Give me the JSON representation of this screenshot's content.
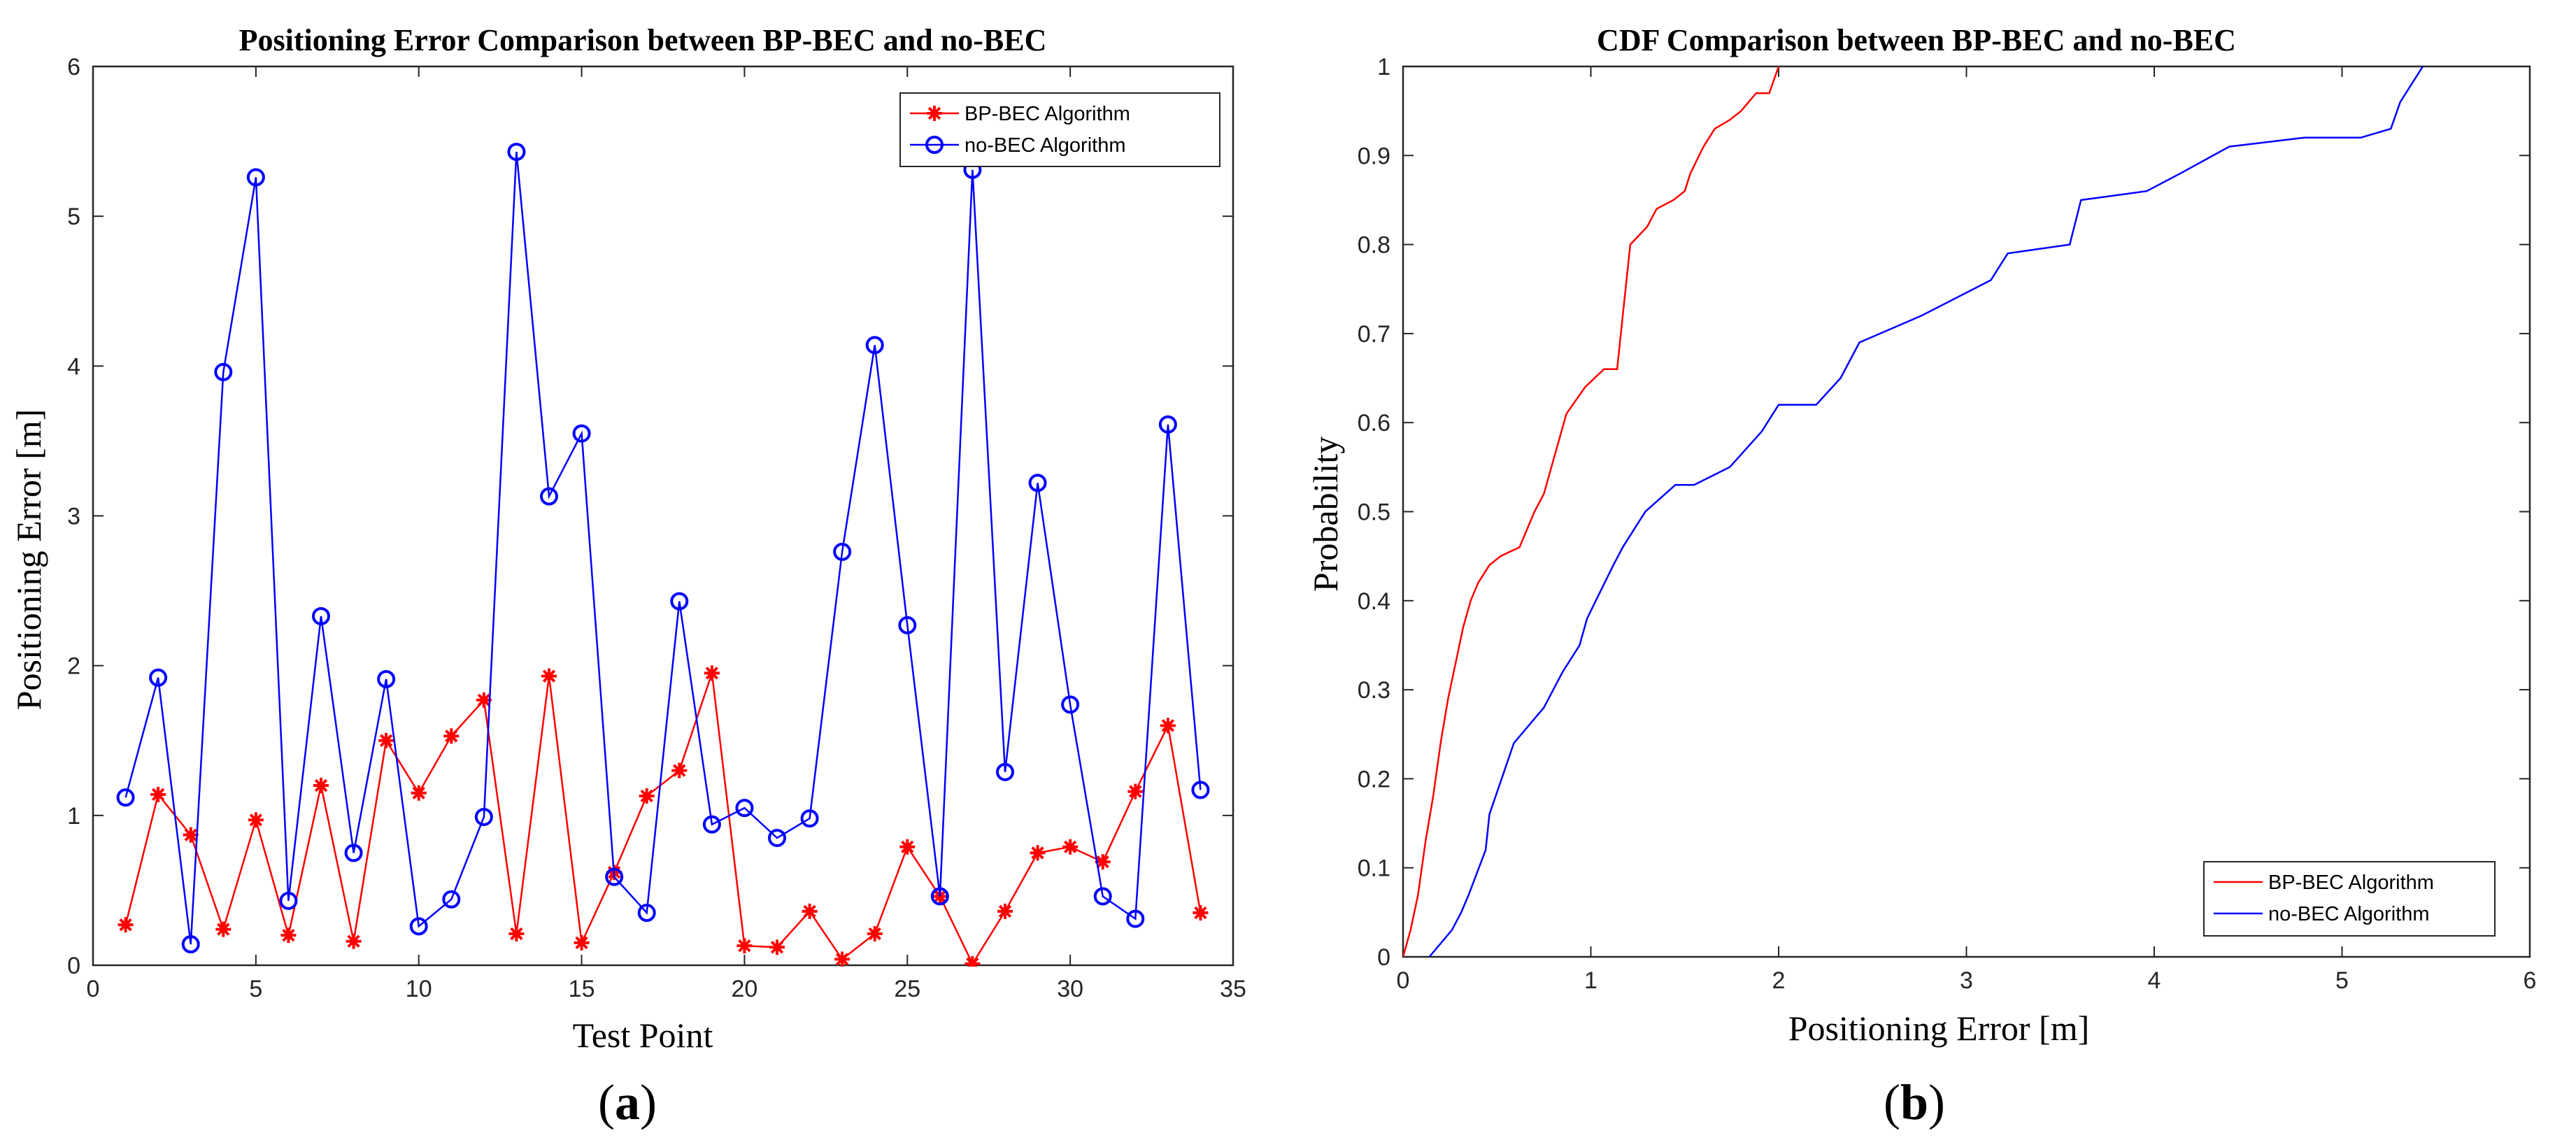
{
  "chart_data": [
    {
      "type": "line",
      "panel": "a",
      "title": "Positioning Error Comparison between BP-BEC and no-BEC",
      "xlabel": "Test Point",
      "ylabel": "Positioning Error [m]",
      "xlim": [
        0,
        35
      ],
      "ylim": [
        0,
        6
      ],
      "xticks": [
        0,
        5,
        10,
        15,
        20,
        25,
        30,
        35
      ],
      "yticks": [
        0,
        1,
        2,
        3,
        4,
        5,
        6
      ],
      "legend_position": "top-right",
      "x": [
        1,
        2,
        3,
        4,
        5,
        6,
        7,
        8,
        9,
        10,
        11,
        12,
        13,
        14,
        15,
        16,
        17,
        18,
        19,
        20,
        21,
        22,
        23,
        24,
        25,
        26,
        27,
        28,
        29,
        30,
        31,
        32,
        33,
        34
      ],
      "series": [
        {
          "name": "BP-BEC Algorithm",
          "color": "#ff0000",
          "marker": "asterisk",
          "values": [
            0.27,
            1.14,
            0.87,
            0.24,
            0.97,
            0.2,
            1.2,
            0.16,
            1.5,
            1.15,
            1.53,
            1.77,
            0.21,
            1.93,
            0.15,
            0.62,
            1.13,
            1.3,
            1.95,
            0.13,
            0.12,
            0.36,
            0.04,
            0.21,
            0.79,
            0.46,
            0.01,
            0.36,
            0.75,
            0.79,
            0.69,
            1.16,
            1.6,
            0.35
          ]
        },
        {
          "name": "no-BEC Algorithm",
          "color": "#0000ff",
          "marker": "circle",
          "values": [
            1.12,
            1.92,
            0.14,
            3.96,
            5.26,
            0.43,
            2.33,
            0.75,
            1.91,
            0.26,
            0.44,
            0.99,
            5.43,
            3.13,
            3.55,
            0.59,
            0.35,
            2.43,
            0.94,
            1.05,
            0.85,
            0.98,
            2.76,
            4.14,
            2.27,
            0.46,
            5.31,
            1.29,
            3.22,
            1.74,
            0.46,
            0.31,
            3.61,
            1.17
          ]
        }
      ]
    },
    {
      "type": "line",
      "panel": "b",
      "title": "CDF Comparison between BP-BEC and no-BEC",
      "xlabel": "Positioning Error [m]",
      "ylabel": "Probability",
      "xlim": [
        0,
        6
      ],
      "ylim": [
        0,
        1
      ],
      "xticks": [
        0,
        1,
        2,
        3,
        4,
        5,
        6
      ],
      "yticks": [
        0,
        0.1,
        0.2,
        0.3,
        0.4,
        0.5,
        0.6,
        0.7,
        0.8,
        0.9,
        1
      ],
      "legend_position": "bottom-right",
      "series": [
        {
          "name": "BP-BEC Algorithm",
          "color": "#ff0000",
          "x": [
            0,
            0.04,
            0.08,
            0.12,
            0.16,
            0.2,
            0.24,
            0.28,
            0.32,
            0.36,
            0.4,
            0.46,
            0.52,
            0.62,
            0.66,
            0.7,
            0.75,
            0.79,
            0.87,
            0.97,
            1.07,
            1.14,
            1.17,
            1.21,
            1.3,
            1.35,
            1.44,
            1.5,
            1.53,
            1.6,
            1.66,
            1.74,
            1.8,
            1.88,
            1.95,
            2.0
          ],
          "values": [
            0,
            0.03,
            0.07,
            0.13,
            0.18,
            0.24,
            0.29,
            0.33,
            0.37,
            0.4,
            0.42,
            0.44,
            0.45,
            0.46,
            0.48,
            0.5,
            0.52,
            0.55,
            0.61,
            0.64,
            0.66,
            0.66,
            0.72,
            0.8,
            0.82,
            0.84,
            0.85,
            0.86,
            0.88,
            0.91,
            0.93,
            0.94,
            0.95,
            0.97,
            0.97,
            1.0
          ]
        },
        {
          "name": "no-BEC Algorithm",
          "color": "#0000ff",
          "x": [
            0.14,
            0.26,
            0.31,
            0.35,
            0.44,
            0.46,
            0.59,
            0.75,
            0.85,
            0.94,
            0.98,
            1.05,
            1.12,
            1.17,
            1.29,
            1.45,
            1.55,
            1.74,
            1.91,
            2.0,
            2.1,
            2.2,
            2.33,
            2.43,
            2.76,
            3.13,
            3.22,
            3.55,
            3.61,
            3.96,
            4.14,
            4.4,
            4.8,
            5.1,
            5.26,
            5.31,
            5.43
          ],
          "values": [
            0,
            0.03,
            0.05,
            0.07,
            0.12,
            0.16,
            0.24,
            0.28,
            0.32,
            0.35,
            0.38,
            0.41,
            0.44,
            0.46,
            0.5,
            0.53,
            0.53,
            0.55,
            0.59,
            0.62,
            0.62,
            0.62,
            0.65,
            0.69,
            0.72,
            0.76,
            0.79,
            0.8,
            0.85,
            0.86,
            0.88,
            0.91,
            0.92,
            0.92,
            0.93,
            0.96,
            1.0
          ]
        }
      ]
    }
  ],
  "panel_labels": {
    "a": "a",
    "b": "b"
  }
}
